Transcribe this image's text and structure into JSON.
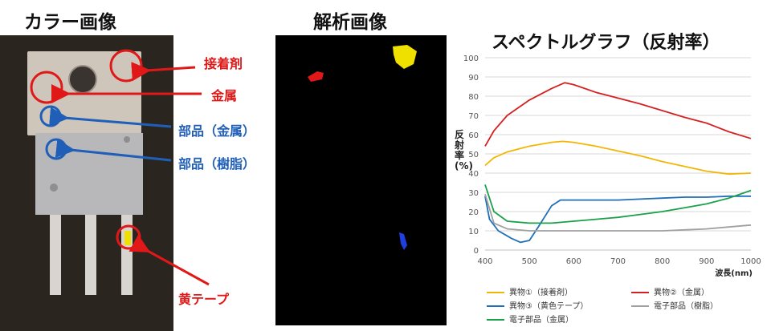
{
  "color_panel": {
    "title": "カラー画像",
    "labels": {
      "adhesive": "接着剤",
      "metal": "金属",
      "part_metal": "部品（金属）",
      "part_resin": "部品（樹脂）",
      "yellow_tape": "黄テープ"
    }
  },
  "analysis_panel": {
    "title": "解析画像"
  },
  "colors": {
    "red": "#e01818",
    "blue": "#1f5fb8",
    "yellow": "#f0e000",
    "s1": "#f2b705",
    "s2": "#d42020",
    "s3": "#1f6fb8",
    "s4": "#a0a0a0",
    "s5": "#1aa04a"
  },
  "chart_data": {
    "type": "line",
    "title": "スペクトルグラフ（反射率）",
    "xlabel": "波長(nm)",
    "ylabel": "反射率(%)",
    "xlim": [
      400,
      1000
    ],
    "ylim": [
      0,
      100
    ],
    "xticks": [
      400,
      500,
      600,
      700,
      800,
      900,
      1000
    ],
    "yticks": [
      0,
      10,
      20,
      30,
      40,
      50,
      60,
      70,
      80,
      90,
      100
    ],
    "grid": true,
    "legend_position": "bottom",
    "series": [
      {
        "name": "異物①（接着剤）",
        "color": "#f2b705",
        "x": [
          400,
          420,
          450,
          500,
          550,
          575,
          600,
          650,
          700,
          750,
          800,
          850,
          900,
          950,
          1000
        ],
        "y": [
          44,
          48,
          51,
          54,
          56,
          56.5,
          56,
          54,
          51.5,
          49,
          46,
          43.5,
          41,
          39.5,
          40
        ]
      },
      {
        "name": "異物②（金属）",
        "color": "#d42020",
        "x": [
          400,
          420,
          450,
          500,
          550,
          580,
          600,
          650,
          700,
          750,
          800,
          850,
          900,
          950,
          1000
        ],
        "y": [
          54,
          62,
          70,
          78,
          84,
          87,
          86,
          82,
          79,
          76,
          72.5,
          69,
          66,
          61.5,
          58
        ]
      },
      {
        "name": "異物③（黄色テープ）",
        "color": "#1f6fb8",
        "x": [
          400,
          410,
          430,
          460,
          480,
          500,
          520,
          550,
          570,
          600,
          650,
          700,
          750,
          800,
          850,
          900,
          950,
          1000
        ],
        "y": [
          28,
          16,
          10,
          6,
          4,
          5,
          12,
          23,
          26,
          26,
          26,
          26,
          26.5,
          27,
          27.5,
          27.5,
          28,
          28
        ]
      },
      {
        "name": "電子部品（樹脂）",
        "color": "#a0a0a0",
        "x": [
          400,
          420,
          450,
          500,
          550,
          600,
          650,
          700,
          750,
          800,
          850,
          900,
          950,
          1000
        ],
        "y": [
          29,
          14,
          11,
          10,
          10,
          10,
          10,
          10,
          10,
          10,
          10.5,
          11,
          12,
          13
        ]
      },
      {
        "name": "電子部品（金属）",
        "color": "#1aa04a",
        "x": [
          400,
          420,
          450,
          500,
          550,
          600,
          650,
          700,
          750,
          800,
          850,
          900,
          950,
          1000
        ],
        "y": [
          34,
          20,
          15,
          14,
          14,
          15,
          16,
          17,
          18.5,
          20,
          22,
          24,
          27,
          31
        ]
      }
    ]
  }
}
